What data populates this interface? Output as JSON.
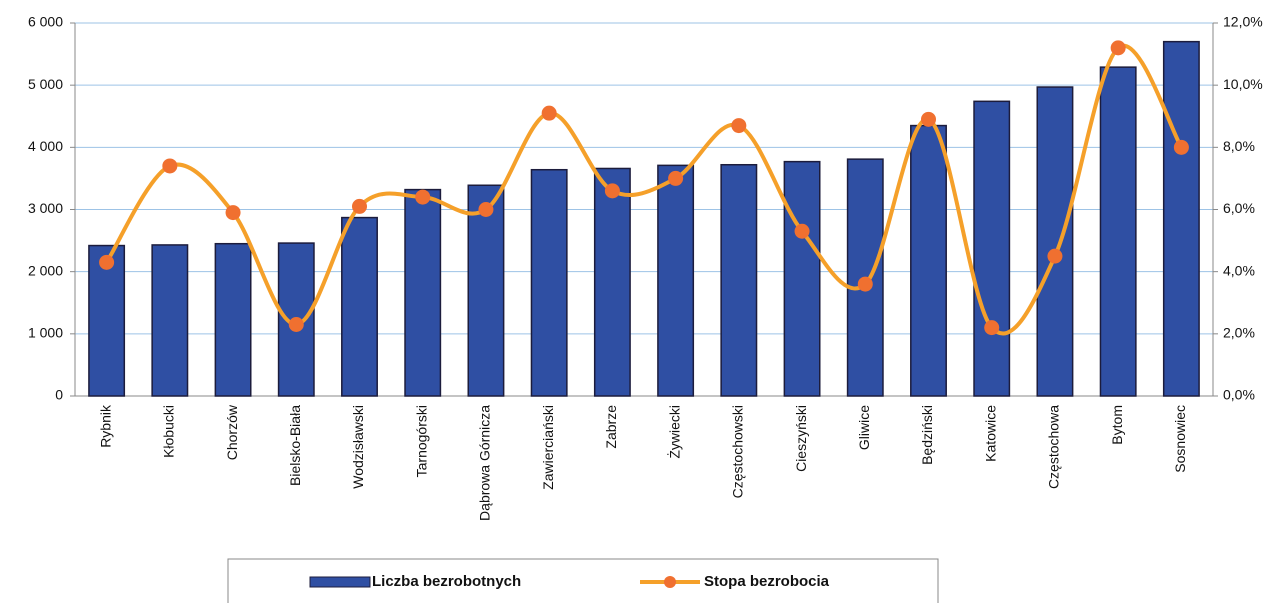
{
  "chart_data": {
    "type": "bar-line",
    "categories": [
      "Rybnik",
      "Kłobucki",
      "Chorzów",
      "Bielsko-Biała",
      "Wodzisławski",
      "Tarnogórski",
      "Dąbrowa Górnicza",
      "Zawierciański",
      "Zabrze",
      "Żywiecki",
      "Częstochowski",
      "Cieszyński",
      "Gliwice",
      "Będziński",
      "Katowice",
      "Częstochowa",
      "Bytom",
      "Sosnowiec"
    ],
    "series": [
      {
        "name": "Liczba bezrobotnych",
        "color": "#2f4fa3",
        "values": [
          2420,
          2430,
          2450,
          2460,
          2870,
          3320,
          3390,
          3640,
          3660,
          3710,
          3720,
          3770,
          3810,
          4350,
          4740,
          4970,
          5290,
          5700
        ]
      },
      {
        "name": "Stopa bezrobocia",
        "color": "#f5a02a",
        "marker_color": "#f07030",
        "axis": "y2",
        "values": [
          4.3,
          7.4,
          5.9,
          2.3,
          6.1,
          6.4,
          6.0,
          9.1,
          6.6,
          7.0,
          8.7,
          5.3,
          3.6,
          8.9,
          2.2,
          4.5,
          11.2,
          8.0
        ]
      }
    ],
    "ylim": [
      0,
      6000
    ],
    "yticks": [
      0,
      {
        "value": 1000,
        "label": "1 000"
      },
      {
        "value": 2000,
        "label": "2 000"
      },
      {
        "value": 3000,
        "label": "3 000"
      },
      {
        "value": 4000,
        "label": "4 000"
      },
      {
        "value": 5000,
        "label": "5 000"
      },
      {
        "value": 6000,
        "label": "6 000"
      }
    ],
    "y2lim": [
      0,
      12
    ],
    "y2ticks": [
      {
        "value": 0,
        "label": "0,0%"
      },
      {
        "value": 2,
        "label": "2,0%"
      },
      {
        "value": 4,
        "label": "4,0%"
      },
      {
        "value": 6,
        "label": "6,0%"
      },
      {
        "value": 8,
        "label": "8,0%"
      },
      {
        "value": 10,
        "label": "10,0%"
      },
      {
        "value": 12,
        "label": "12,0%"
      }
    ],
    "grid": true,
    "legend": "bottom"
  }
}
